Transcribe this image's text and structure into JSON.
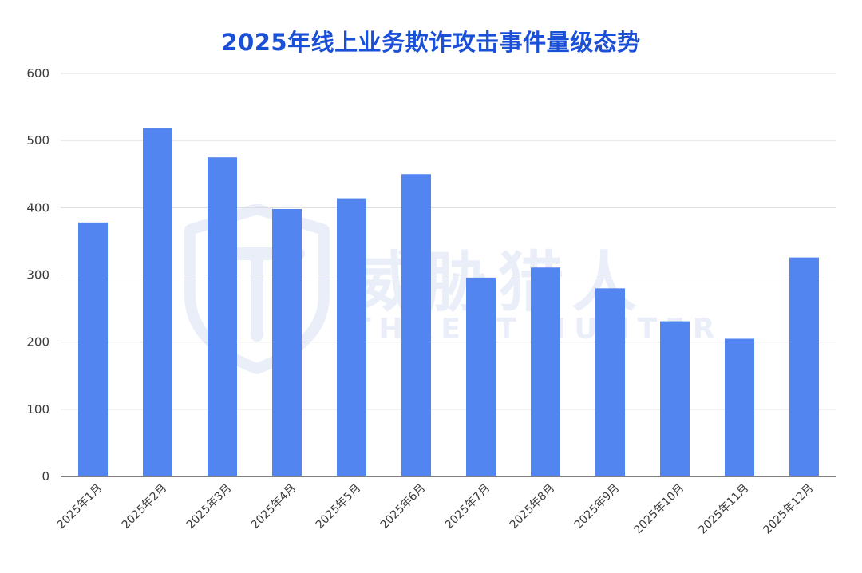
{
  "colors": {
    "title": "#1a4fd8",
    "bar": "#5285f0",
    "grid": "#dcdcdc",
    "axis": "#333333",
    "watermark": "#e9eef8"
  },
  "watermark": {
    "cn_text": "威胁猎人",
    "en_text": "THREAT HUNTER",
    "icon": "shield-th-logo-icon"
  },
  "chart_data": {
    "type": "bar",
    "title": "2025年线上业务欺诈攻击事件量级态势",
    "xlabel": "",
    "ylabel": "",
    "categories": [
      "2025年1月",
      "2025年2月",
      "2025年3月",
      "2025年4月",
      "2025年5月",
      "2025年6月",
      "2025年7月",
      "2025年8月",
      "2025年9月",
      "2025年10月",
      "2025年11月",
      "2025年12月"
    ],
    "values": [
      378,
      519,
      475,
      398,
      414,
      450,
      296,
      311,
      280,
      231,
      205,
      326
    ],
    "ylim": [
      0,
      600
    ],
    "yticks": [
      0,
      100,
      200,
      300,
      400,
      500,
      600
    ],
    "grid": true,
    "legend": "none"
  }
}
